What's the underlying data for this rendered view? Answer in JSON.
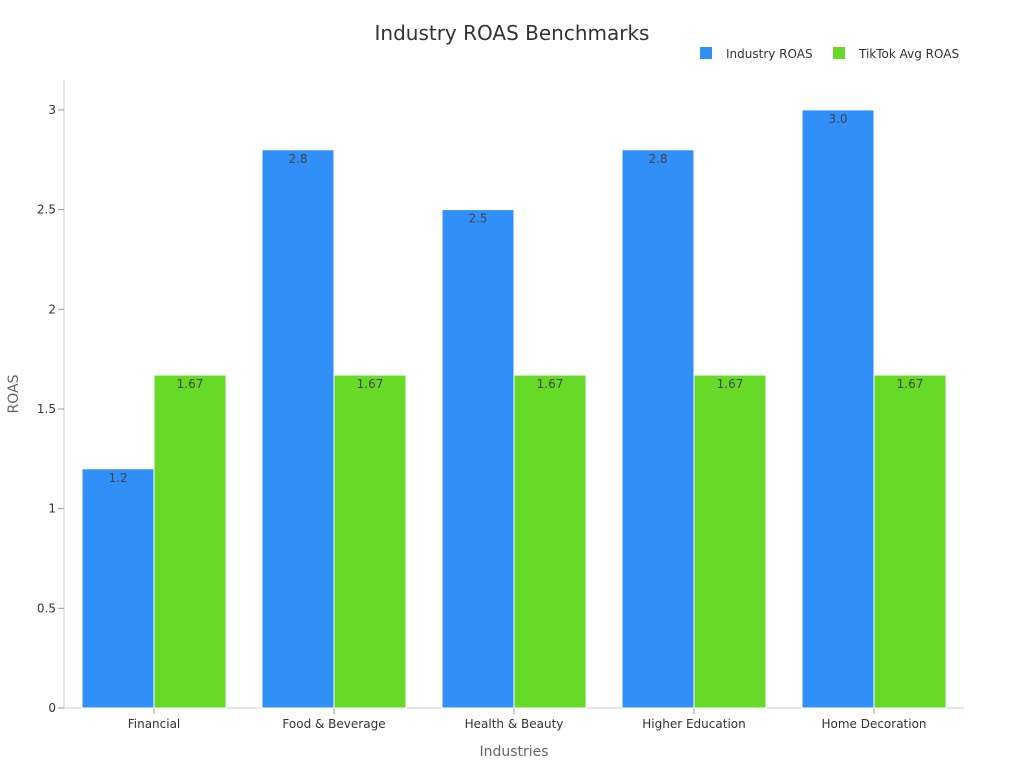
{
  "chart_data": {
    "type": "bar",
    "title": "Industry ROAS Benchmarks",
    "xlabel": "Industries",
    "ylabel": "ROAS",
    "categories": [
      "Financial",
      "Food & Beverage",
      "Health & Beauty",
      "Higher Education",
      "Home Decoration"
    ],
    "series": [
      {
        "name": "Industry ROAS",
        "color": "#3090F8",
        "values": [
          1.2,
          2.8,
          2.5,
          2.8,
          3.0
        ],
        "labels": [
          "1.2",
          "2.8",
          "2.5",
          "2.8",
          "3.0"
        ]
      },
      {
        "name": "TikTok Avg ROAS",
        "color": "#66DA26",
        "values": [
          1.67,
          1.67,
          1.67,
          1.67,
          1.67
        ],
        "labels": [
          "1.67",
          "1.67",
          "1.67",
          "1.67",
          "1.67"
        ]
      }
    ],
    "ylim": [
      0,
      3.15
    ],
    "yticks": [
      0,
      0.5,
      1,
      1.5,
      2,
      2.5,
      3
    ],
    "ytick_labels": [
      "0",
      "0.5",
      "1",
      "1.5",
      "2",
      "2.5",
      "3"
    ],
    "grid": false,
    "legend_position": "top-right"
  }
}
